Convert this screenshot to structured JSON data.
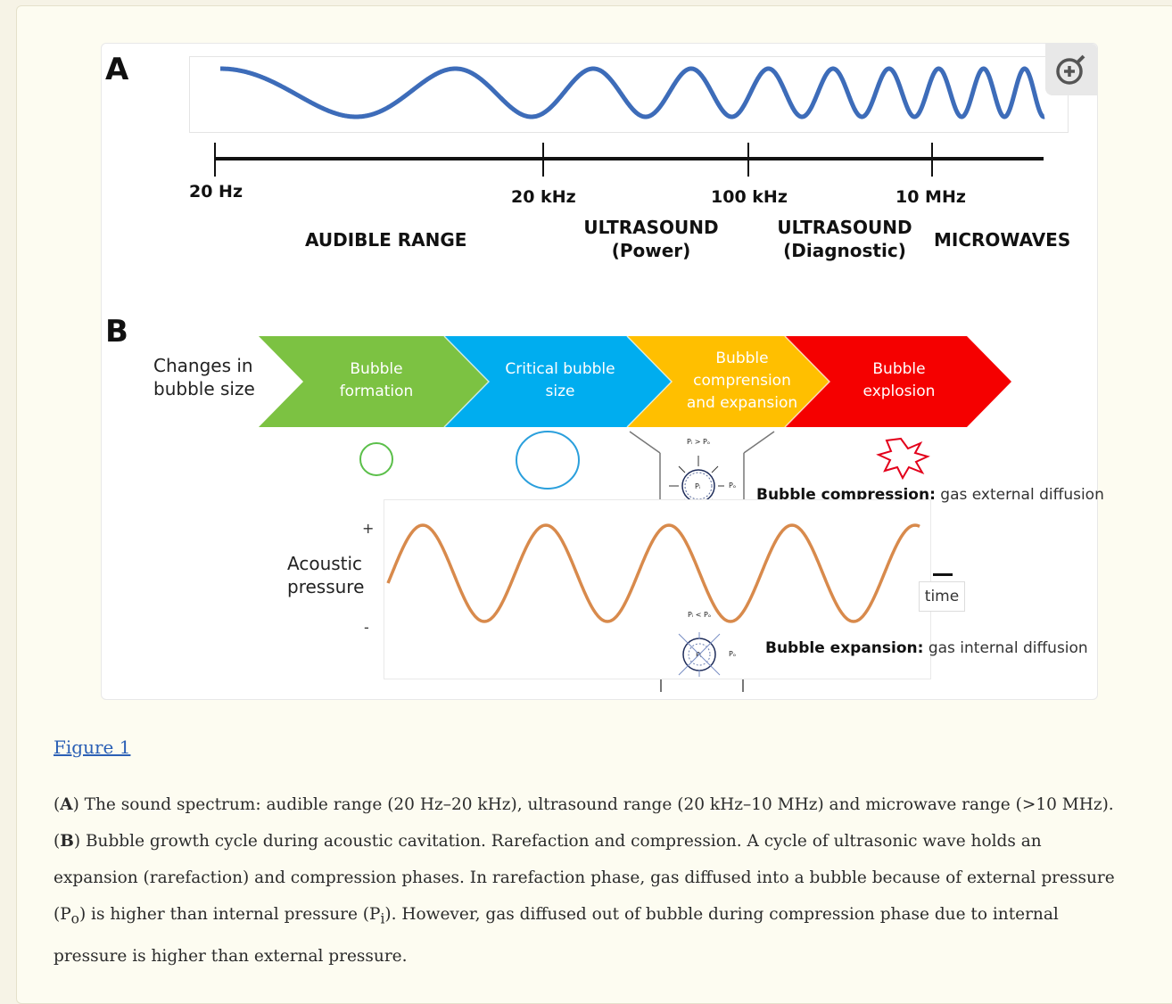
{
  "panel_a": {
    "letter": "A",
    "frequencies": [
      "20 Hz",
      "20 kHz",
      "100 kHz",
      "10 MHz"
    ],
    "ranges": {
      "audible": "AUDIBLE RANGE",
      "power_line1": "ULTRASOUND",
      "power_line2": "(Power)",
      "diag_line1": "ULTRASOUND",
      "diag_line2": "(Diagnostic)",
      "microwaves": "MICROWAVES"
    },
    "wave_color": "#3d6cb9"
  },
  "panel_b": {
    "letter": "B",
    "changes_line1": "Changes in",
    "changes_line2": "bubble size",
    "stages": [
      {
        "line1": "Bubble",
        "line2": "formation",
        "line3": "",
        "color": "#7cc242"
      },
      {
        "line1": "Critical bubble",
        "line2": "size",
        "line3": "",
        "color": "#00adef"
      },
      {
        "line1": "Bubble",
        "line2": "comprension",
        "line3": "and expansion",
        "color": "#ffbf00"
      },
      {
        "line1": "Bubble",
        "line2": "explosion",
        "line3": "",
        "color": "#f50000"
      }
    ],
    "acoustic_line1": "Acoustic",
    "acoustic_line2": "pressure",
    "plus": "+",
    "minus": "-",
    "time": "time",
    "compression_bold": "Bubble compression:",
    "compression_rest": " gas external diffusion",
    "expansion_bold": "Bubble expansion:",
    "expansion_rest": " gas internal diffusion",
    "wave_color": "#d88a4c"
  },
  "figure_link": "Figure 1",
  "caption": {
    "A_label": "A",
    "A_text": " The sound spectrum: audible range (20 Hz–20 kHz), ultrasound range (20 kHz–10 MHz) and microwave range (>10 MHz). ",
    "B_label": "B",
    "B_text1": " Bubble growth cycle during acoustic cavitation. Rarefaction and compression. A cycle of ultrasonic wave holds an expansion (rarefaction) and compression phases. In rarefaction phase, gas diffused into a bubble because of external pressure (P",
    "sub_o": "o",
    "B_text2": ") is higher than internal pressure (P",
    "sub_i": "i",
    "B_text3": "). However, gas diffused out of bubble during compression phase due to internal pressure is higher than external pressure."
  }
}
